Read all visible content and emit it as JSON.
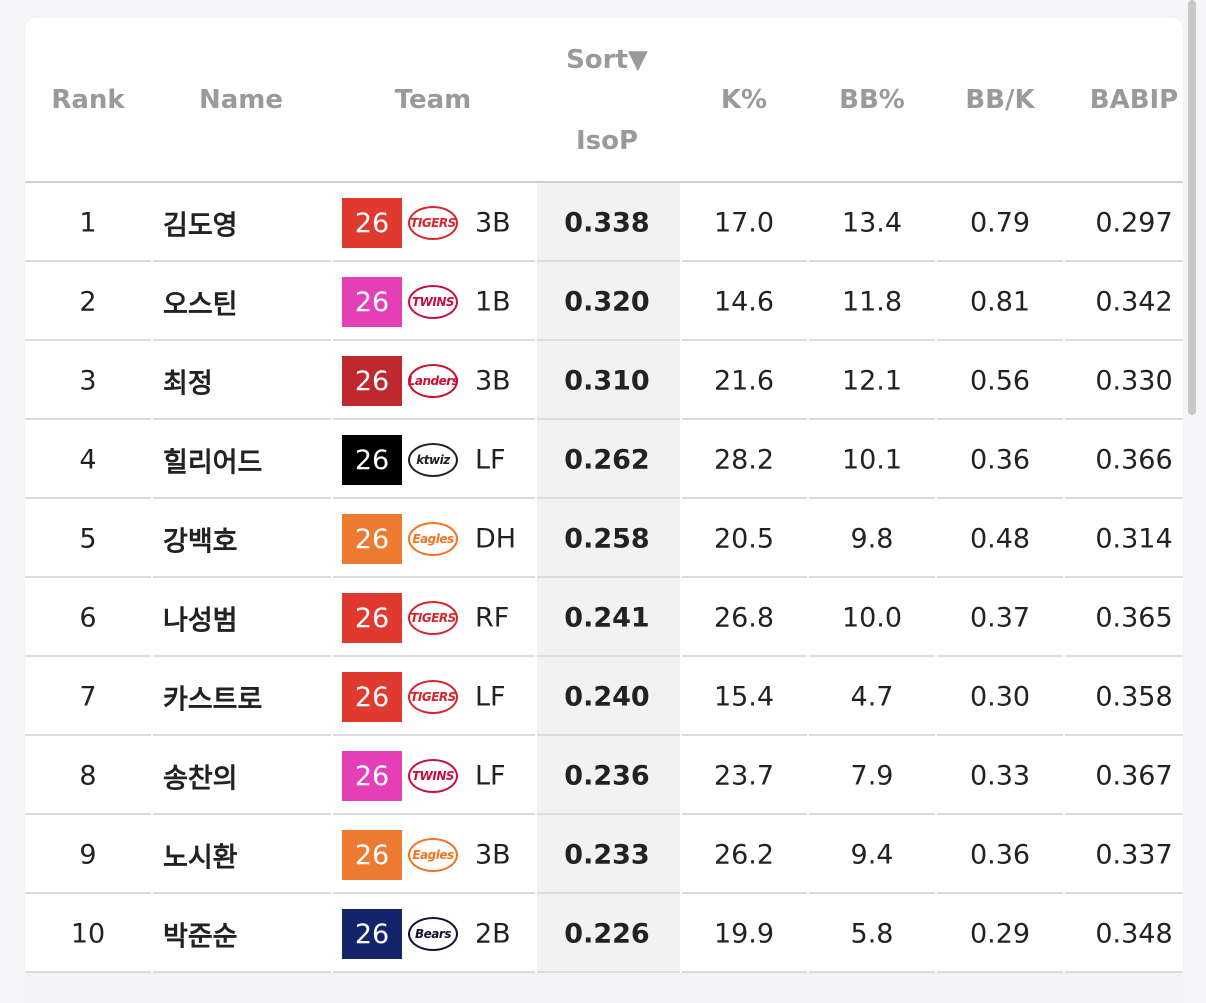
{
  "table": {
    "headers": {
      "rank": "Rank",
      "name": "Name",
      "team": "Team",
      "sort": "Sort▼",
      "isop": "IsoP",
      "k": "K%",
      "bb": "BB%",
      "bbk": "BB/K",
      "babip": "BABIP"
    },
    "rows": [
      {
        "rank": 1,
        "name": "김도영",
        "year": "26",
        "badge_color": "#e03a30",
        "logo": "TIGERS",
        "logo_color": "#d8252c",
        "pos": "3B",
        "isop": "0.338",
        "k": "17.0",
        "bb": "13.4",
        "bbk": "0.79",
        "babip": "0.297"
      },
      {
        "rank": 2,
        "name": "오스틴",
        "year": "26",
        "badge_color": "#e53fb8",
        "logo": "TWINS",
        "logo_color": "#c4113f",
        "pos": "1B",
        "isop": "0.320",
        "k": "14.6",
        "bb": "11.8",
        "bbk": "0.81",
        "babip": "0.342"
      },
      {
        "rank": 3,
        "name": "최정",
        "year": "26",
        "badge_color": "#c0282f",
        "logo": "Landers",
        "logo_color": "#ce0e2d",
        "pos": "3B",
        "isop": "0.310",
        "k": "21.6",
        "bb": "12.1",
        "bbk": "0.56",
        "babip": "0.330"
      },
      {
        "rank": 4,
        "name": "힐리어드",
        "year": "26",
        "badge_color": "#000000",
        "logo": "ktwiz",
        "logo_color": "#222222",
        "pos": "LF",
        "isop": "0.262",
        "k": "28.2",
        "bb": "10.1",
        "bbk": "0.36",
        "babip": "0.366"
      },
      {
        "rank": 5,
        "name": "강백호",
        "year": "26",
        "badge_color": "#ec7a30",
        "logo": "Eagles",
        "logo_color": "#f37321",
        "pos": "DH",
        "isop": "0.258",
        "k": "20.5",
        "bb": "9.8",
        "bbk": "0.48",
        "babip": "0.314"
      },
      {
        "rank": 6,
        "name": "나성범",
        "year": "26",
        "badge_color": "#e03a30",
        "logo": "TIGERS",
        "logo_color": "#d8252c",
        "pos": "RF",
        "isop": "0.241",
        "k": "26.8",
        "bb": "10.0",
        "bbk": "0.37",
        "babip": "0.365"
      },
      {
        "rank": 7,
        "name": "카스트로",
        "year": "26",
        "badge_color": "#e03a30",
        "logo": "TIGERS",
        "logo_color": "#d8252c",
        "pos": "LF",
        "isop": "0.240",
        "k": "15.4",
        "bb": "4.7",
        "bbk": "0.30",
        "babip": "0.358"
      },
      {
        "rank": 8,
        "name": "송찬의",
        "year": "26",
        "badge_color": "#e53fb8",
        "logo": "TWINS",
        "logo_color": "#c4113f",
        "pos": "LF",
        "isop": "0.236",
        "k": "23.7",
        "bb": "7.9",
        "bbk": "0.33",
        "babip": "0.367"
      },
      {
        "rank": 9,
        "name": "노시환",
        "year": "26",
        "badge_color": "#ec7a30",
        "logo": "Eagles",
        "logo_color": "#f37321",
        "pos": "3B",
        "isop": "0.233",
        "k": "26.2",
        "bb": "9.4",
        "bbk": "0.36",
        "babip": "0.337"
      },
      {
        "rank": 10,
        "name": "박준순",
        "year": "26",
        "badge_color": "#14246b",
        "logo": "Bears",
        "logo_color": "#131230",
        "pos": "2B",
        "isop": "0.226",
        "k": "19.9",
        "bb": "5.8",
        "bbk": "0.29",
        "babip": "0.348"
      }
    ]
  }
}
